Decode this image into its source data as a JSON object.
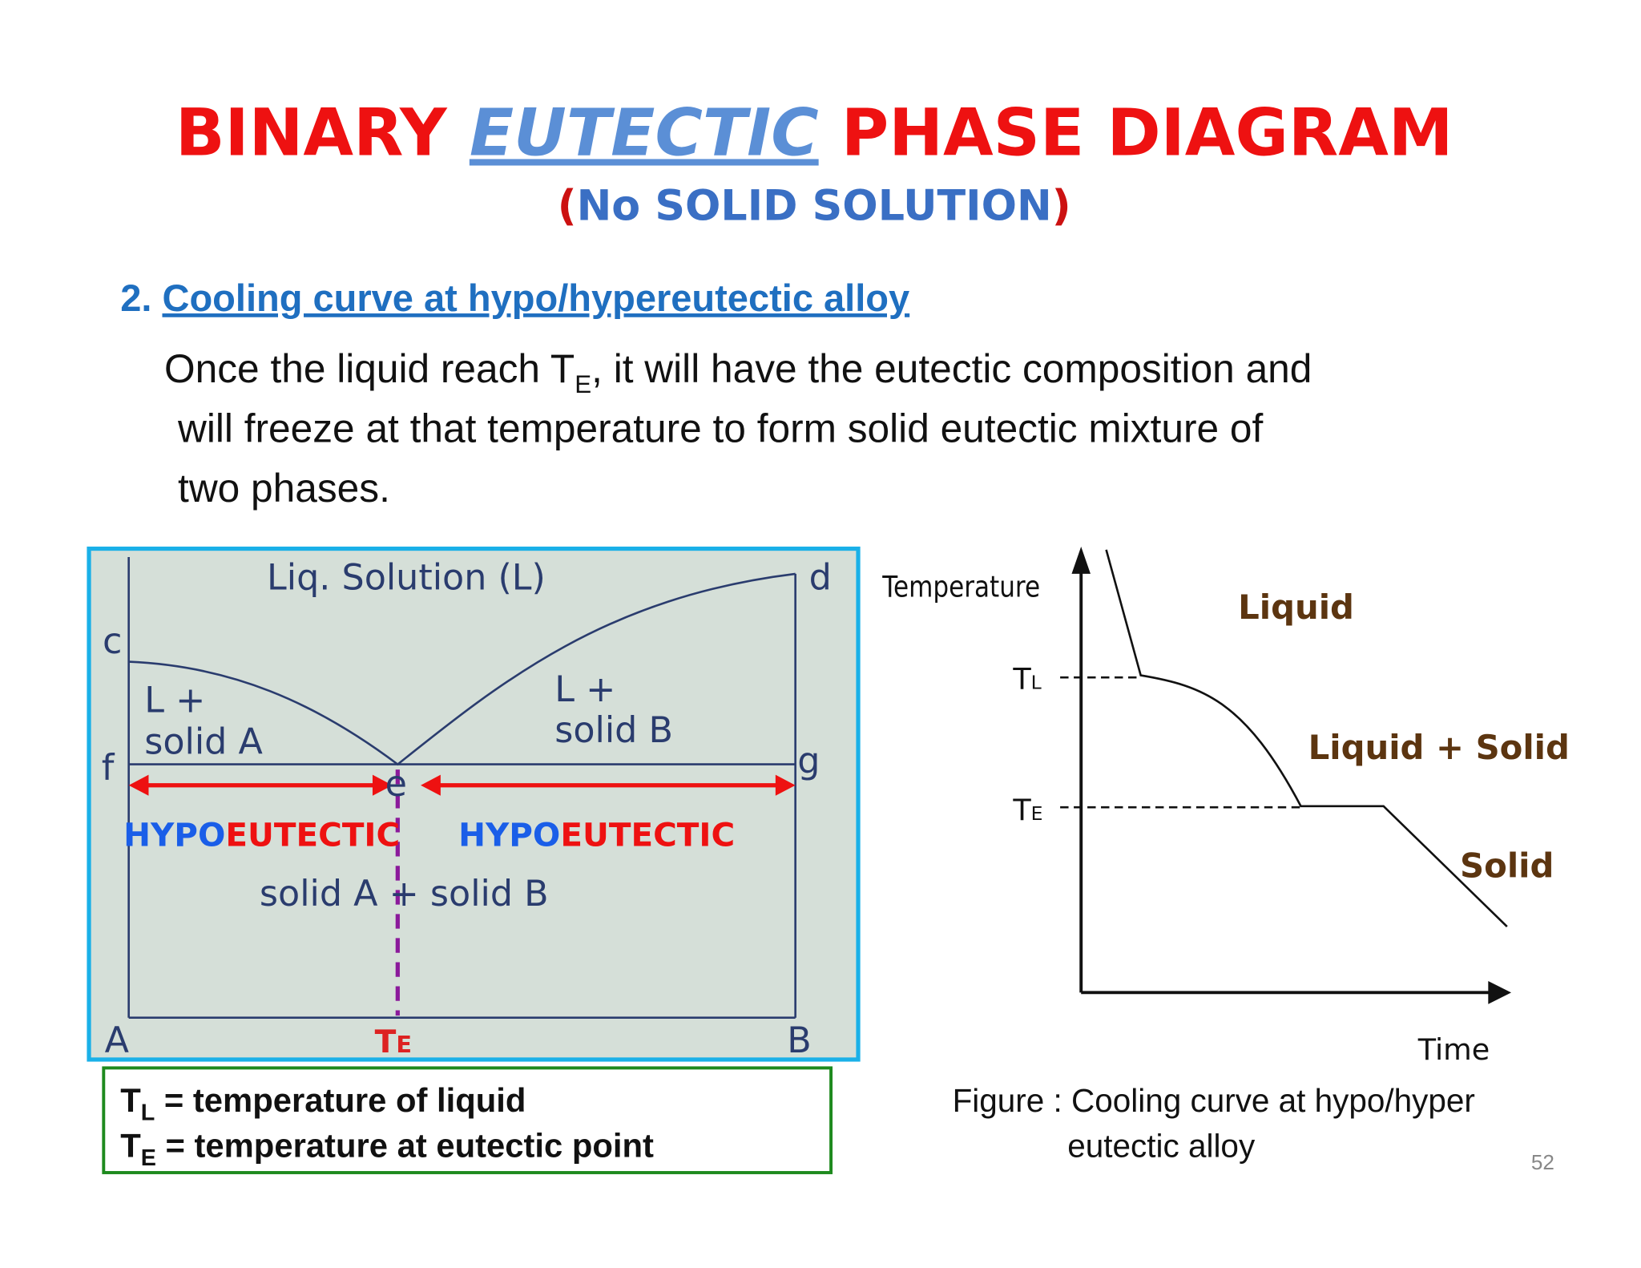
{
  "title": {
    "part1": "BINARY",
    "part2": "EUTECTIC",
    "part3": "PHASE DIAGRAM"
  },
  "subtitle": {
    "open": "(",
    "text": "No SOLID SOLUTION",
    "close": ")"
  },
  "heading": {
    "number": "2.",
    "text": "Cooling curve at hypo/hypereutectic alloy"
  },
  "paragraph": {
    "line1_a": "Once the liquid reach T",
    "line1_sub": "E",
    "line1_b": ", it will have the eutectic composition and",
    "line2": "will freeze at that temperature to form solid eutectic mixture of",
    "line3": "two phases."
  },
  "phase_diagram": {
    "region_liquid": "Liq. Solution (L)",
    "points": {
      "c": "c",
      "d": "d",
      "f": "f",
      "g": "g",
      "e": "e",
      "A": "A",
      "B": "B"
    },
    "region_left": [
      "L +",
      "solid A"
    ],
    "region_right": [
      "L +",
      "solid B"
    ],
    "region_bottom": "solid A + solid B",
    "left_label": {
      "prefix": "HYPO",
      "suffix": "EUTECTIC"
    },
    "right_label": {
      "prefix": "HYPO",
      "suffix": "EUTECTIC"
    },
    "te": {
      "main": "T",
      "sub": "E"
    }
  },
  "cooling_curve": {
    "y_axis": "Temperature",
    "x_axis": "Time",
    "tl": {
      "main": "T",
      "sub": "L"
    },
    "te": {
      "main": "T",
      "sub": "E"
    },
    "liquid": "Liquid",
    "mixed": "Liquid + Solid",
    "solid": "Solid"
  },
  "legend": {
    "tl": {
      "main": "T",
      "sub": "L",
      "text": " = temperature of liquid"
    },
    "te": {
      "main": "T",
      "sub": "E",
      "text": " = temperature at eutectic point"
    }
  },
  "caption": {
    "line1": "Figure : Cooling curve at hypo/hyper",
    "line2": "eutectic alloy"
  },
  "page_number": "52"
}
